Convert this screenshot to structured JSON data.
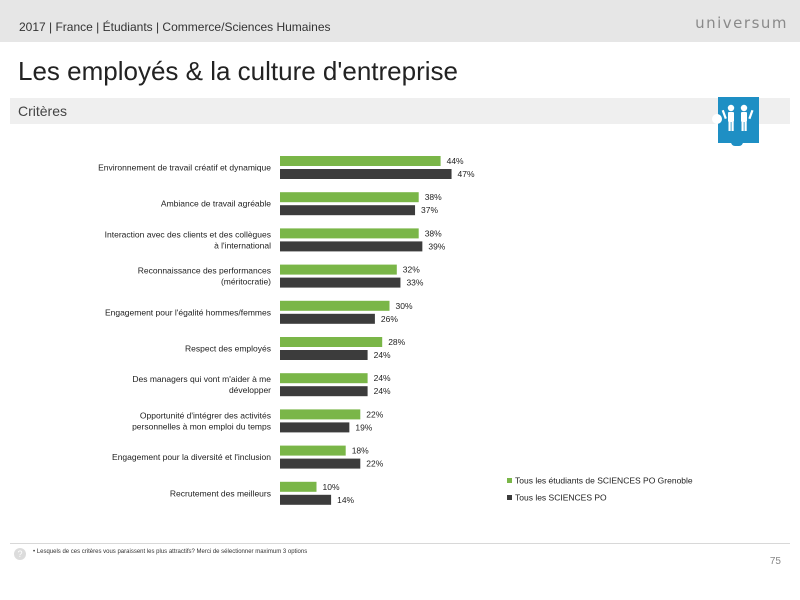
{
  "header": {
    "breadcrumb": "2017 | France | Étudiants | Commerce/Sciences Humaines",
    "logo": "universum"
  },
  "page_title": "Les employés & la culture d'entreprise",
  "section_label": "Critères",
  "chart_data": {
    "type": "bar",
    "orientation": "horizontal",
    "categories": [
      [
        "Environnement de travail créatif et dynamique"
      ],
      [
        "Ambiance de travail agréable"
      ],
      [
        "Interaction avec des clients et des collègues",
        "à l'international"
      ],
      [
        "Reconnaissance des performances",
        "(méritocratie)"
      ],
      [
        "Engagement pour l'égalité hommes/femmes"
      ],
      [
        "Respect des employés"
      ],
      [
        "Des managers qui vont m'aider à me",
        "développer"
      ],
      [
        "Opportunité d'intégrer des activités",
        "personnelles à mon emploi du temps"
      ],
      [
        "Engagement pour la diversité et l'inclusion"
      ],
      [
        "Recrutement des meilleurs"
      ]
    ],
    "series": [
      {
        "name": "Tous les étudiants de SCIENCES PO Grenoble",
        "color": "#7ab648",
        "values": [
          44,
          38,
          38,
          32,
          30,
          28,
          24,
          22,
          18,
          10
        ]
      },
      {
        "name": "Tous les SCIENCES PO",
        "color": "#3c3c3c",
        "values": [
          47,
          37,
          39,
          33,
          26,
          24,
          24,
          19,
          22,
          14
        ]
      }
    ],
    "value_suffix": "%",
    "legend_position": "bottom-right",
    "grid": false
  },
  "footer": {
    "help_icon": "?",
    "footnote": "• Lesquels de ces critères vous paraissent les plus attractifs? Merci de sélectionner maximum 3 options",
    "page_number": "75"
  }
}
